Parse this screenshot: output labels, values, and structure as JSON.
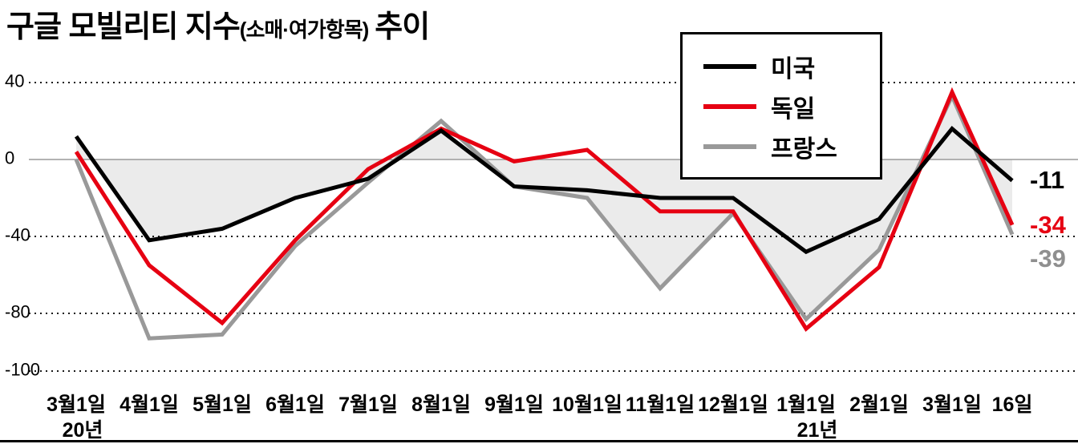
{
  "title": {
    "main": "구글 모빌리티 지수",
    "paren": "(소매·여가항목)",
    "suffix": "추이"
  },
  "legend": {
    "items": [
      {
        "label": "미국",
        "color": "#000000"
      },
      {
        "label": "독일",
        "color": "#e60012"
      },
      {
        "label": "프랑스",
        "color": "#999999"
      }
    ],
    "position": "top-right"
  },
  "axis": {
    "y_ticks": [
      "40",
      "0",
      "-40",
      "-80",
      "-100"
    ],
    "x_sub": [
      {
        "index": 0,
        "label": "20년"
      },
      {
        "index": 10,
        "label": "21년"
      }
    ]
  },
  "end_labels": [
    {
      "text": "-11",
      "color": "#000000"
    },
    {
      "text": "-34",
      "color": "#e60012"
    },
    {
      "text": "-39",
      "color": "#8f8f8f"
    }
  ],
  "chart_data": {
    "type": "line",
    "title": "구글 모빌리티 지수(소매·여가항목) 추이",
    "categories": [
      "3월1일",
      "4월1일",
      "5월1일",
      "6월1일",
      "7월1일",
      "8월1일",
      "9월1일",
      "10월1일",
      "11월1일",
      "12월1일",
      "1월1일",
      "2월1일",
      "3월1일",
      "16일"
    ],
    "x_period_labels": {
      "3월1일_first": "20년",
      "1월1일": "21년"
    },
    "series": [
      {
        "name": "미국",
        "color": "#000000",
        "values": [
          12,
          -42,
          -36,
          -20,
          -10,
          15,
          -14,
          -16,
          -20,
          -20,
          -48,
          -31,
          16,
          -11
        ]
      },
      {
        "name": "독일",
        "color": "#e60012",
        "values": [
          4,
          -55,
          -85,
          -42,
          -5,
          16,
          -1,
          5,
          -27,
          -27,
          -88,
          -56,
          35,
          -34
        ]
      },
      {
        "name": "프랑스",
        "color": "#999999",
        "values": [
          0,
          -93,
          -91,
          -45,
          -12,
          20,
          -14,
          -20,
          -67,
          -28,
          -83,
          -47,
          33,
          -39
        ]
      }
    ],
    "fill": {
      "color": "#ebebeb",
      "description": "light gray area between zero line and lower envelope of series",
      "switch_index": 7
    },
    "ylim": [
      -110,
      45
    ],
    "grid": "horizontal-dotted",
    "legend_position": "top-right",
    "xlabel": "",
    "ylabel": ""
  }
}
